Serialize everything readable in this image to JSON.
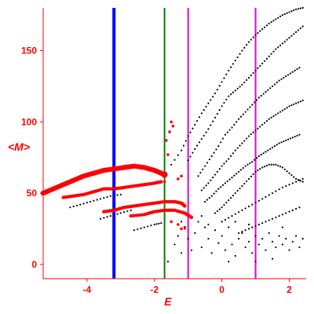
{
  "chart_data": {
    "type": "scatter",
    "xlabel": "E",
    "ylabel": "<M>",
    "xlim": [
      -5.3,
      2.5
    ],
    "ylim": [
      -10,
      180
    ],
    "xticks": [
      -4,
      -2,
      0,
      2
    ],
    "yticks": [
      0,
      50,
      100,
      150
    ],
    "grid": false,
    "colors": {
      "axis": "#ff0000",
      "black_points": "#000000",
      "red_points": "#ff0000",
      "line_blue": "#0000ff",
      "line_green": "#008000",
      "line_magenta": "#e000e0"
    },
    "vertical_lines": [
      {
        "x": -3.2,
        "color": "#0000ff",
        "width": 4
      },
      {
        "x": -1.7,
        "color": "#008000",
        "width": 2
      },
      {
        "x": -1.0,
        "color": "#e000e0",
        "width": 2
      },
      {
        "x": 1.0,
        "color": "#e000e0",
        "width": 2
      }
    ],
    "red_series": [
      [
        [
          -5.3,
          50
        ],
        [
          -5.0,
          53
        ],
        [
          -4.7,
          56
        ],
        [
          -4.4,
          59
        ],
        [
          -4.1,
          62
        ],
        [
          -3.8,
          64
        ],
        [
          -3.5,
          66
        ],
        [
          -3.2,
          67
        ],
        [
          -2.9,
          68
        ],
        [
          -2.6,
          69
        ],
        [
          -2.3,
          68
        ],
        [
          -2.0,
          66
        ],
        [
          -1.8,
          64
        ],
        [
          -1.7,
          63
        ]
      ],
      [
        [
          -4.7,
          47
        ],
        [
          -4.4,
          48
        ],
        [
          -4.1,
          49
        ],
        [
          -3.8,
          51
        ],
        [
          -3.5,
          53
        ],
        [
          -3.2,
          53
        ],
        [
          -2.9,
          54
        ],
        [
          -2.6,
          55
        ],
        [
          -2.3,
          56
        ],
        [
          -2.0,
          57
        ],
        [
          -1.8,
          58
        ]
      ],
      [
        [
          -3.5,
          37
        ],
        [
          -3.2,
          38
        ],
        [
          -2.9,
          40
        ],
        [
          -2.6,
          41
        ],
        [
          -2.3,
          42
        ],
        [
          -2.0,
          43
        ],
        [
          -1.7,
          44
        ],
        [
          -1.4,
          44
        ],
        [
          -1.2,
          43
        ],
        [
          -1.1,
          41
        ]
      ],
      [
        [
          -2.7,
          34
        ],
        [
          -2.3,
          35
        ],
        [
          -2.0,
          37
        ],
        [
          -1.7,
          38
        ],
        [
          -1.4,
          38
        ],
        [
          -1.1,
          36
        ],
        [
          -0.9,
          33
        ]
      ]
    ],
    "red_extra": [
      [
        -1.65,
        87
      ],
      [
        -1.6,
        77
      ],
      [
        -1.55,
        93
      ],
      [
        -1.5,
        100
      ],
      [
        -1.45,
        97
      ],
      [
        -1.7,
        58
      ],
      [
        -1.75,
        63
      ],
      [
        -1.7,
        62
      ],
      [
        -1.3,
        60
      ],
      [
        -1.2,
        62
      ],
      [
        -1.5,
        30
      ],
      [
        -1.3,
        28
      ],
      [
        -1.2,
        25
      ],
      [
        -1.1,
        26
      ]
    ],
    "black_series": [
      [
        [
          -1.5,
          70
        ],
        [
          -1.2,
          80
        ],
        [
          -1.0,
          90
        ],
        [
          -0.8,
          98
        ],
        [
          -0.6,
          106
        ],
        [
          -0.4,
          113
        ],
        [
          -0.2,
          120
        ],
        [
          0.0,
          128
        ],
        [
          0.2,
          136
        ],
        [
          0.4,
          143
        ],
        [
          0.6,
          150
        ],
        [
          0.8,
          156
        ],
        [
          1.0,
          161
        ],
        [
          1.2,
          165
        ],
        [
          1.4,
          169
        ],
        [
          1.6,
          172
        ],
        [
          1.8,
          175
        ],
        [
          2.0,
          177
        ],
        [
          2.2,
          179
        ],
        [
          2.4,
          180
        ]
      ],
      [
        [
          -1.0,
          73
        ],
        [
          -0.8,
          81
        ],
        [
          -0.6,
          88
        ],
        [
          -0.4,
          95
        ],
        [
          -0.2,
          103
        ],
        [
          0.0,
          111
        ],
        [
          0.2,
          118
        ],
        [
          0.4,
          122
        ],
        [
          0.6,
          126
        ],
        [
          0.8,
          131
        ],
        [
          1.0,
          136
        ],
        [
          1.2,
          141
        ],
        [
          1.4,
          146
        ],
        [
          1.6,
          151
        ],
        [
          1.8,
          155
        ],
        [
          2.0,
          159
        ],
        [
          2.2,
          163
        ],
        [
          2.4,
          167
        ]
      ],
      [
        [
          -0.7,
          62
        ],
        [
          -0.5,
          69
        ],
        [
          -0.3,
          76
        ],
        [
          -0.1,
          83
        ],
        [
          0.1,
          91
        ],
        [
          0.3,
          96
        ],
        [
          0.5,
          102
        ],
        [
          0.7,
          107
        ],
        [
          0.9,
          112
        ],
        [
          1.1,
          117
        ],
        [
          1.3,
          121
        ],
        [
          1.5,
          125
        ],
        [
          1.7,
          129
        ],
        [
          1.9,
          132
        ],
        [
          2.1,
          135
        ],
        [
          2.3,
          138
        ]
      ],
      [
        [
          -0.6,
          52
        ],
        [
          -0.4,
          57
        ],
        [
          -0.2,
          63
        ],
        [
          0.0,
          69
        ],
        [
          0.2,
          74
        ],
        [
          0.4,
          80
        ],
        [
          0.6,
          85
        ],
        [
          0.8,
          90
        ],
        [
          1.0,
          94
        ],
        [
          1.2,
          98
        ],
        [
          1.4,
          102
        ],
        [
          1.6,
          105
        ],
        [
          1.8,
          108
        ],
        [
          2.0,
          111
        ],
        [
          2.2,
          113
        ],
        [
          2.4,
          115
        ]
      ],
      [
        [
          -0.5,
          44
        ],
        [
          -0.3,
          48
        ],
        [
          -0.1,
          53
        ],
        [
          0.1,
          57
        ],
        [
          0.3,
          61
        ],
        [
          0.5,
          65
        ],
        [
          0.7,
          69
        ],
        [
          0.9,
          72
        ],
        [
          1.1,
          76
        ],
        [
          1.3,
          79
        ],
        [
          1.5,
          82
        ],
        [
          1.7,
          85
        ],
        [
          1.9,
          87
        ],
        [
          2.1,
          89
        ],
        [
          2.3,
          91
        ]
      ],
      [
        [
          -0.2,
          36
        ],
        [
          0.0,
          40
        ],
        [
          0.2,
          45
        ],
        [
          0.4,
          50
        ],
        [
          0.6,
          55
        ],
        [
          0.8,
          60
        ],
        [
          1.0,
          65
        ],
        [
          1.2,
          68
        ],
        [
          1.4,
          70
        ],
        [
          1.6,
          70
        ],
        [
          1.8,
          68
        ],
        [
          2.0,
          64
        ],
        [
          2.2,
          60
        ],
        [
          2.4,
          58
        ]
      ],
      [
        [
          0.0,
          30
        ],
        [
          0.3,
          34
        ],
        [
          0.6,
          38
        ],
        [
          0.9,
          42
        ],
        [
          1.2,
          46
        ],
        [
          1.5,
          50
        ],
        [
          1.8,
          54
        ],
        [
          2.1,
          57
        ],
        [
          2.4,
          60
        ]
      ],
      [
        [
          0.5,
          22
        ],
        [
          0.8,
          25
        ],
        [
          1.1,
          28
        ],
        [
          1.4,
          31
        ],
        [
          1.7,
          34
        ],
        [
          2.0,
          37
        ],
        [
          2.3,
          40
        ]
      ],
      [
        [
          -4.5,
          40
        ],
        [
          -4.2,
          42
        ],
        [
          -3.9,
          44
        ],
        [
          -3.6,
          46
        ],
        [
          -3.3,
          48
        ],
        [
          -3.0,
          49
        ]
      ],
      [
        [
          -3.6,
          32
        ],
        [
          -3.3,
          34
        ],
        [
          -3.0,
          36
        ],
        [
          -2.7,
          38
        ]
      ],
      [
        [
          -2.6,
          24
        ],
        [
          -2.3,
          26
        ],
        [
          -2.0,
          28
        ],
        [
          -1.8,
          29
        ]
      ]
    ],
    "black_cluster": [
      [
        -1.6,
        2
      ],
      [
        -1.4,
        14
      ],
      [
        -1.3,
        20
      ],
      [
        -1.2,
        30
      ],
      [
        -1.1,
        25
      ],
      [
        -1.0,
        18
      ],
      [
        -0.9,
        33
      ],
      [
        -0.8,
        22
      ],
      [
        -0.7,
        30
      ],
      [
        -0.6,
        12
      ],
      [
        -0.5,
        26
      ],
      [
        -0.4,
        18
      ],
      [
        -0.3,
        8
      ],
      [
        -0.2,
        24
      ],
      [
        -0.1,
        15
      ],
      [
        0.0,
        20
      ],
      [
        0.1,
        10
      ],
      [
        0.2,
        26
      ],
      [
        0.3,
        14
      ],
      [
        0.4,
        6
      ],
      [
        0.5,
        18
      ],
      [
        0.6,
        22
      ],
      [
        0.7,
        12
      ],
      [
        0.8,
        16
      ],
      [
        0.9,
        8
      ],
      [
        1.0,
        20
      ],
      [
        1.1,
        14
      ],
      [
        1.2,
        18
      ],
      [
        1.3,
        10
      ],
      [
        1.4,
        22
      ],
      [
        1.5,
        16
      ],
      [
        1.6,
        12
      ],
      [
        1.7,
        20
      ],
      [
        1.8,
        14
      ],
      [
        1.9,
        18
      ],
      [
        2.0,
        10
      ],
      [
        2.1,
        16
      ],
      [
        2.2,
        20
      ],
      [
        2.3,
        12
      ],
      [
        2.4,
        18
      ],
      [
        -0.9,
        10
      ],
      [
        -0.4,
        28
      ],
      [
        0.2,
        2
      ],
      [
        0.8,
        28
      ],
      [
        1.5,
        4
      ],
      [
        -1.2,
        8
      ],
      [
        -0.6,
        34
      ],
      [
        0.4,
        30
      ],
      [
        1.0,
        2
      ],
      [
        1.8,
        26
      ]
    ]
  }
}
